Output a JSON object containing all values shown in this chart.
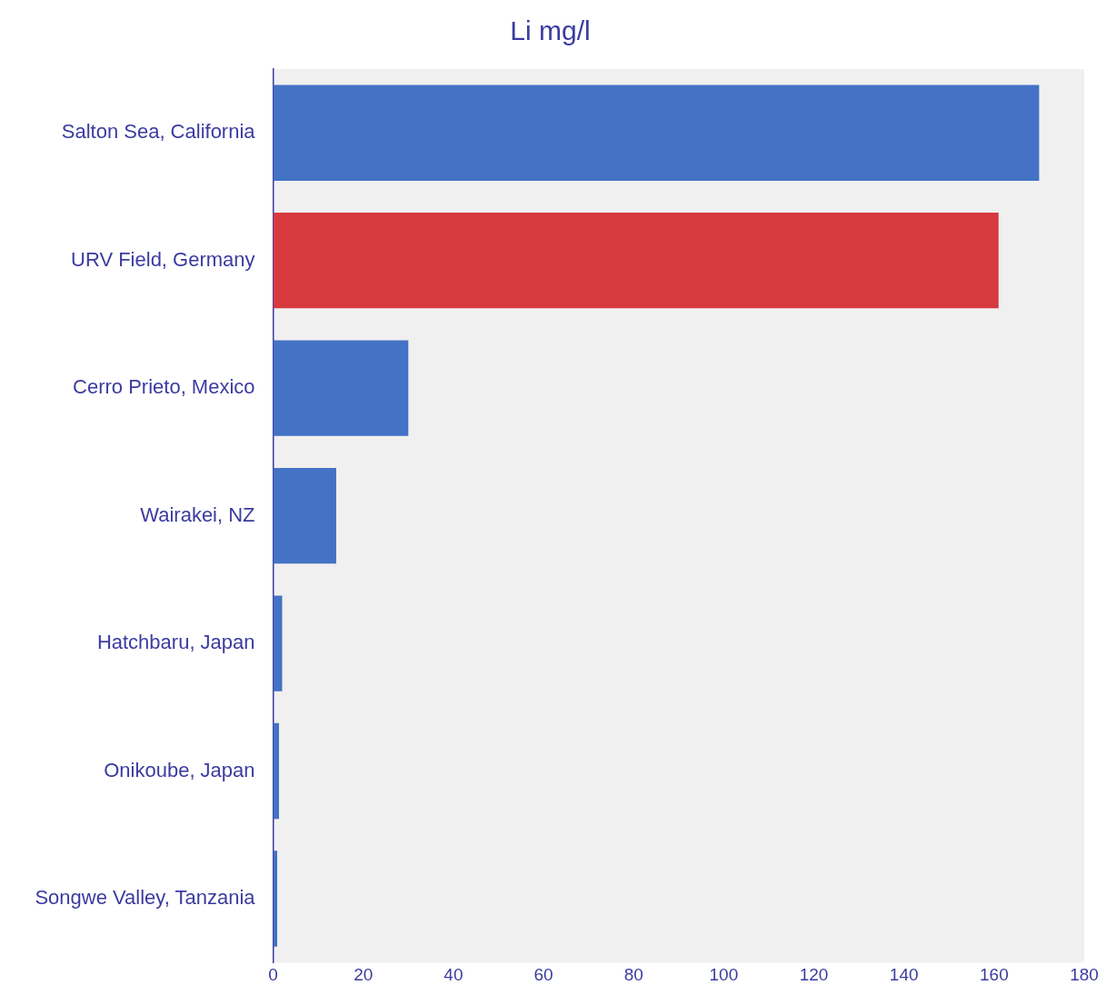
{
  "chart_data": {
    "type": "bar",
    "orientation": "horizontal",
    "title": "Li mg/l",
    "categories": [
      "Salton Sea, California",
      "URV Field, Germany",
      "Cerro Prieto, Mexico",
      "Wairakei, NZ",
      "Hatchbaru, Japan",
      "Onikoube, Japan",
      "Songwe Valley, Tanzania"
    ],
    "values": [
      170,
      161,
      30,
      14,
      2,
      1.3,
      0.9
    ],
    "colors": [
      "#4472c4",
      "#d63a3f",
      "#4472c4",
      "#4472c4",
      "#4472c4",
      "#4472c4",
      "#4472c4"
    ],
    "xlim": [
      0,
      180
    ],
    "xticks": [
      0,
      20,
      40,
      60,
      80,
      100,
      120,
      140,
      160,
      180
    ],
    "grid": false,
    "legend": false
  }
}
